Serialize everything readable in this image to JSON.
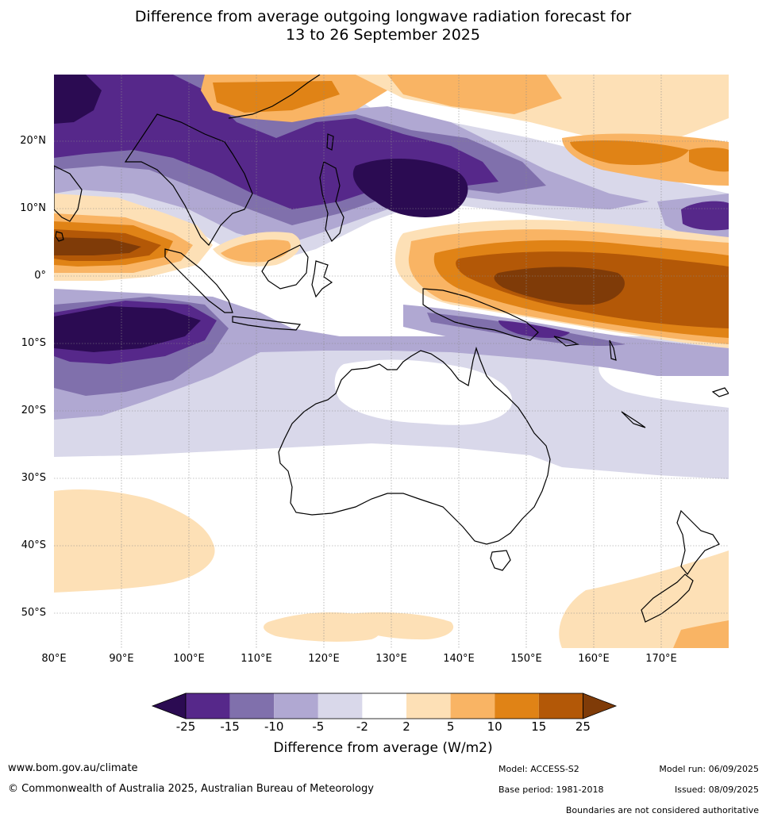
{
  "title": {
    "line1": "Difference from average outgoing longwave radiation forecast for",
    "line2": "13 to 26 September 2025"
  },
  "map": {
    "lat_labels": [
      "20°N",
      "10°N",
      "0°",
      "10°S",
      "20°S",
      "30°S",
      "40°S",
      "50°S"
    ],
    "lon_labels": [
      "80°E",
      "90°E",
      "100°E",
      "110°E",
      "120°E",
      "130°E",
      "140°E",
      "150°E",
      "160°E",
      "170°E"
    ],
    "lon_range": [
      80,
      180
    ],
    "lat_range": [
      -55,
      30
    ],
    "grid": true,
    "projection": "plate carree"
  },
  "legend": {
    "ticks": [
      "-25",
      "-15",
      "-10",
      "-5",
      "-2",
      "2",
      "5",
      "10",
      "15",
      "25"
    ],
    "colors": [
      "#2b0b52",
      "#56288a",
      "#8070ac",
      "#b0a8d2",
      "#d9d8ea",
      "#ffffff",
      "#fde0b6",
      "#f9b464",
      "#e08316",
      "#b35807",
      "#7f3b08"
    ],
    "title": "Difference from average (W/m2)"
  },
  "footer": {
    "website": "www.bom.gov.au/climate",
    "copyright": "© Commonwealth of Australia 2025, Australian Bureau of Meteorology",
    "model": "Model: ACCESS-S2",
    "base_period": "Base period: 1981-2018",
    "model_run": "Model run: 06/09/2025",
    "issued": "Issued: 08/09/2025",
    "disclaimer": "Boundaries are not considered authoritative"
  }
}
